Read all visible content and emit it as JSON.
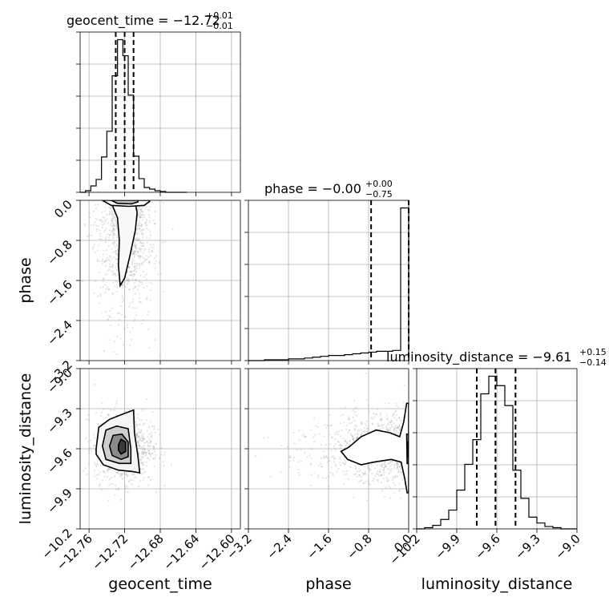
{
  "chart_data": {
    "type": "corner",
    "parameters": [
      "geocent_time",
      "phase",
      "luminosity_distance"
    ],
    "axis_labels": {
      "geocent_time": "geocent_time",
      "phase": "phase",
      "luminosity_distance": "luminosity_distance"
    },
    "ranges": {
      "geocent_time": [
        -12.77,
        -12.59
      ],
      "phase": [
        -3.2,
        0.0
      ],
      "luminosity_distance": [
        -10.2,
        -9.0
      ]
    },
    "ticks": {
      "geocent_time": [
        -12.76,
        -12.72,
        -12.68,
        -12.64,
        -12.6
      ],
      "phase": [
        -3.2,
        -2.4,
        -1.6,
        -0.8,
        0.0
      ],
      "luminosity_distance": [
        -10.2,
        -9.9,
        -9.6,
        -9.3,
        -9.0
      ]
    },
    "tick_labels": {
      "geocent_time": [
        "−12.76",
        "−12.72",
        "−12.68",
        "−12.64",
        "−12.60"
      ],
      "phase": [
        "−3.2",
        "−2.4",
        "−1.6",
        "−0.8",
        "0.0"
      ],
      "luminosity_distance": [
        "−10.2",
        "−9.9",
        "−9.6",
        "−9.3",
        "−9.0"
      ]
    },
    "titles": [
      {
        "param": "geocent_time",
        "text": "geocent_time = −12.72",
        "sup": "+0.01",
        "sub": "−0.01"
      },
      {
        "param": "phase",
        "text": "phase = −0.00",
        "sup": "+0.00",
        "sub": "−0.75"
      },
      {
        "param": "luminosity_distance",
        "text": "luminosity_distance = −9.61",
        "sup": "+0.15",
        "sub": "−0.14"
      }
    ],
    "quantiles": {
      "geocent_time": [
        -12.73,
        -12.72,
        -12.71
      ],
      "phase": [
        -0.75,
        0.0,
        0.0
      ],
      "luminosity_distance": [
        -9.75,
        -9.61,
        -9.46
      ]
    },
    "histograms": {
      "geocent_time": {
        "bin_edges": [
          -12.77,
          -12.764,
          -12.758,
          -12.752,
          -12.746,
          -12.74,
          -12.734,
          -12.728,
          -12.722,
          -12.716,
          -12.71,
          -12.704,
          -12.698,
          -12.692,
          -12.686,
          -12.68,
          -12.674,
          -12.668,
          -12.662,
          -12.656,
          -12.65
        ],
        "counts": [
          0,
          2,
          8,
          16,
          44,
          76,
          145,
          190,
          170,
          121,
          45,
          17,
          6,
          4,
          2,
          1,
          0,
          0,
          0,
          0
        ]
      },
      "phase": {
        "bin_edges": [
          -3.2,
          -3.04,
          -2.88,
          -2.72,
          -2.56,
          -2.4,
          -2.24,
          -2.08,
          -1.92,
          -1.76,
          -1.6,
          -1.44,
          -1.28,
          -1.12,
          -0.96,
          -0.8,
          -0.64,
          -0.48,
          -0.32,
          -0.16,
          0.0
        ],
        "counts": [
          0,
          0,
          1,
          1,
          1,
          2,
          2,
          3,
          4,
          5,
          6,
          6,
          7,
          8,
          9,
          10,
          11,
          11,
          12,
          180
        ]
      },
      "luminosity_distance": {
        "bin_edges": [
          -10.2,
          -10.14,
          -10.08,
          -10.02,
          -9.96,
          -9.9,
          -9.84,
          -9.78,
          -9.72,
          -9.66,
          -9.6,
          -9.54,
          -9.48,
          -9.42,
          -9.36,
          -9.3,
          -9.24,
          -9.18,
          -9.12,
          -9.06,
          -9.0
        ],
        "counts": [
          0,
          1,
          3,
          8,
          16,
          33,
          55,
          76,
          115,
          130,
          122,
          105,
          50,
          26,
          10,
          5,
          2,
          1,
          0,
          0
        ]
      }
    },
    "contours_2d": {
      "phase_vs_geocent_time": {
        "levels": [
          [
            [
              -12.735,
              -0.05
            ],
            [
              -12.728,
              -0.35
            ],
            [
              -12.726,
              -0.8
            ],
            [
              -12.727,
              -1.3
            ],
            [
              -12.725,
              -1.7
            ],
            [
              -12.72,
              -1.55
            ],
            [
              -12.714,
              -1.1
            ],
            [
              -12.708,
              -0.6
            ],
            [
              -12.706,
              -0.25
            ],
            [
              -12.708,
              -0.05
            ]
          ],
          [
            [
              -12.745,
              0.0
            ],
            [
              -12.735,
              -0.1
            ],
            [
              -12.715,
              -0.12
            ],
            [
              -12.698,
              -0.1
            ],
            [
              -12.692,
              -0.02
            ],
            [
              -12.692,
              0.0
            ]
          ],
          [
            [
              -12.735,
              0.0
            ],
            [
              -12.728,
              -0.06
            ],
            [
              -12.712,
              -0.07
            ],
            [
              -12.705,
              -0.03
            ],
            [
              -12.705,
              0.0
            ]
          ]
        ],
        "fills": [
          "#f8f8f8",
          "#ffffff",
          "#c4c4c4"
        ],
        "peak": [
          -12.719,
          -0.02
        ]
      },
      "luminosity_distance_vs_geocent_time": {
        "levels": [
          [
            [
              -12.752,
              -9.6
            ],
            [
              -12.749,
              -9.44
            ],
            [
              -12.737,
              -9.38
            ],
            [
              -12.722,
              -9.34
            ],
            [
              -12.71,
              -9.31
            ],
            [
              -12.709,
              -9.48
            ],
            [
              -12.705,
              -9.66
            ],
            [
              -12.703,
              -9.78
            ],
            [
              -12.712,
              -9.77
            ],
            [
              -12.727,
              -9.76
            ],
            [
              -12.744,
              -9.72
            ],
            [
              -12.752,
              -9.64
            ]
          ],
          [
            [
              -12.745,
              -9.58
            ],
            [
              -12.741,
              -9.46
            ],
            [
              -12.729,
              -9.43
            ],
            [
              -12.716,
              -9.45
            ],
            [
              -12.713,
              -9.6
            ],
            [
              -12.713,
              -9.71
            ],
            [
              -12.726,
              -9.71
            ],
            [
              -12.741,
              -9.68
            ]
          ],
          [
            [
              -12.737,
              -9.58
            ],
            [
              -12.733,
              -9.5
            ],
            [
              -12.723,
              -9.49
            ],
            [
              -12.716,
              -9.55
            ],
            [
              -12.716,
              -9.66
            ],
            [
              -12.724,
              -9.68
            ],
            [
              -12.734,
              -9.65
            ]
          ],
          [
            [
              -12.727,
              -9.57
            ],
            [
              -12.724,
              -9.53
            ],
            [
              -12.719,
              -9.55
            ],
            [
              -12.719,
              -9.62
            ],
            [
              -12.724,
              -9.64
            ],
            [
              -12.727,
              -9.61
            ]
          ]
        ],
        "fills": [
          "#f5f5f5",
          "#cfcfcf",
          "#8a8a8a",
          "#3a3a3a"
        ],
        "peak": [
          -12.721,
          -9.59
        ]
      },
      "luminosity_distance_vs_phase": {
        "levels": [
          [
            [
              -0.04,
              -9.26
            ],
            [
              -0.1,
              -9.4
            ],
            [
              -0.18,
              -9.51
            ],
            [
              -0.38,
              -9.48
            ],
            [
              -0.65,
              -9.46
            ],
            [
              -0.95,
              -9.51
            ],
            [
              -1.2,
              -9.59
            ],
            [
              -1.35,
              -9.62
            ],
            [
              -1.22,
              -9.68
            ],
            [
              -0.95,
              -9.72
            ],
            [
              -0.7,
              -9.7
            ],
            [
              -0.35,
              -9.68
            ],
            [
              -0.15,
              -9.7
            ],
            [
              -0.08,
              -9.82
            ],
            [
              -0.03,
              -9.93
            ],
            [
              0.0,
              -9.93
            ],
            [
              0.0,
              -9.26
            ]
          ],
          [
            [
              -0.04,
              -9.49
            ],
            [
              -0.03,
              -9.71
            ],
            [
              0.0,
              -9.71
            ],
            [
              0.0,
              -9.49
            ]
          ],
          [
            [
              -0.03,
              -9.55
            ],
            [
              -0.02,
              -9.66
            ],
            [
              0.0,
              -9.66
            ],
            [
              0.0,
              -9.55
            ]
          ]
        ],
        "fills": [
          "#ffffff",
          "#9a9a9a",
          "#222222"
        ],
        "peak": [
          -0.01,
          -9.6
        ]
      }
    },
    "grid": true,
    "point_color": "#808080",
    "contour_color": "#000000"
  }
}
